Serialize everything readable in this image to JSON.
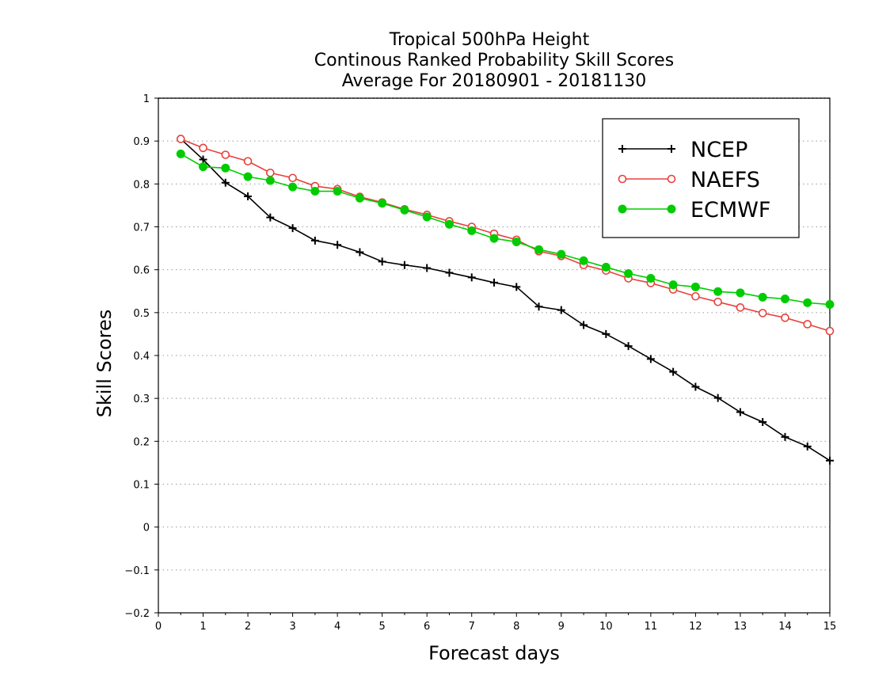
{
  "chart_data": {
    "type": "line",
    "title": [
      "Tropical 500hPa Height",
      "Continous Ranked Probability Skill Scores",
      "Average For 20180901 - 20181130"
    ],
    "xlabel": "Forecast days",
    "ylabel": "Skill Scores",
    "xlim": [
      0,
      15
    ],
    "ylim": [
      -0.2,
      1
    ],
    "xticks": [
      "0",
      "1",
      "2",
      "3",
      "4",
      "5",
      "6",
      "7",
      "8",
      "9",
      "10",
      "11",
      "12",
      "13",
      "14",
      "15"
    ],
    "yticks": [
      "−0.2",
      "−0.1",
      "0",
      "0.1",
      "0.2",
      "0.3",
      "0.4",
      "0.5",
      "0.6",
      "0.7",
      "0.8",
      "0.9",
      "1"
    ],
    "grid": "horizontal dotted",
    "legend_position": "top-right",
    "x": [
      0.5,
      1,
      1.5,
      2,
      2.5,
      3,
      3.5,
      4,
      4.5,
      5,
      5.5,
      6,
      6.5,
      7,
      7.5,
      8,
      8.5,
      9,
      9.5,
      10,
      10.5,
      11,
      11.5,
      12,
      12.5,
      13,
      13.5,
      14,
      14.5,
      15
    ],
    "series": [
      {
        "name": "NCEP",
        "color": "#000000",
        "marker": "plus",
        "values": [
          0.905,
          0.857,
          0.803,
          0.771,
          0.722,
          0.697,
          0.668,
          0.658,
          0.641,
          0.619,
          0.611,
          0.604,
          0.593,
          0.582,
          0.57,
          0.56,
          0.514,
          0.506,
          0.471,
          0.45,
          0.422,
          0.392,
          0.362,
          0.327,
          0.301,
          0.268,
          0.245,
          0.21,
          0.188,
          0.155
        ]
      },
      {
        "name": "NAEFS",
        "color": "#e8413c",
        "marker": "open-circle",
        "values": [
          0.905,
          0.884,
          0.868,
          0.853,
          0.826,
          0.814,
          0.795,
          0.788,
          0.77,
          0.757,
          0.741,
          0.728,
          0.713,
          0.7,
          0.684,
          0.67,
          0.643,
          0.632,
          0.611,
          0.598,
          0.58,
          0.569,
          0.554,
          0.538,
          0.525,
          0.512,
          0.499,
          0.488,
          0.473,
          0.457
        ]
      },
      {
        "name": "ECMWF",
        "color": "#00cc00",
        "marker": "filled-circle",
        "values": [
          0.87,
          0.84,
          0.837,
          0.817,
          0.808,
          0.793,
          0.783,
          0.783,
          0.767,
          0.755,
          0.739,
          0.723,
          0.706,
          0.691,
          0.673,
          0.665,
          0.647,
          0.636,
          0.621,
          0.606,
          0.591,
          0.58,
          0.565,
          0.56,
          0.549,
          0.546,
          0.536,
          0.532,
          0.523,
          0.519
        ]
      }
    ]
  }
}
